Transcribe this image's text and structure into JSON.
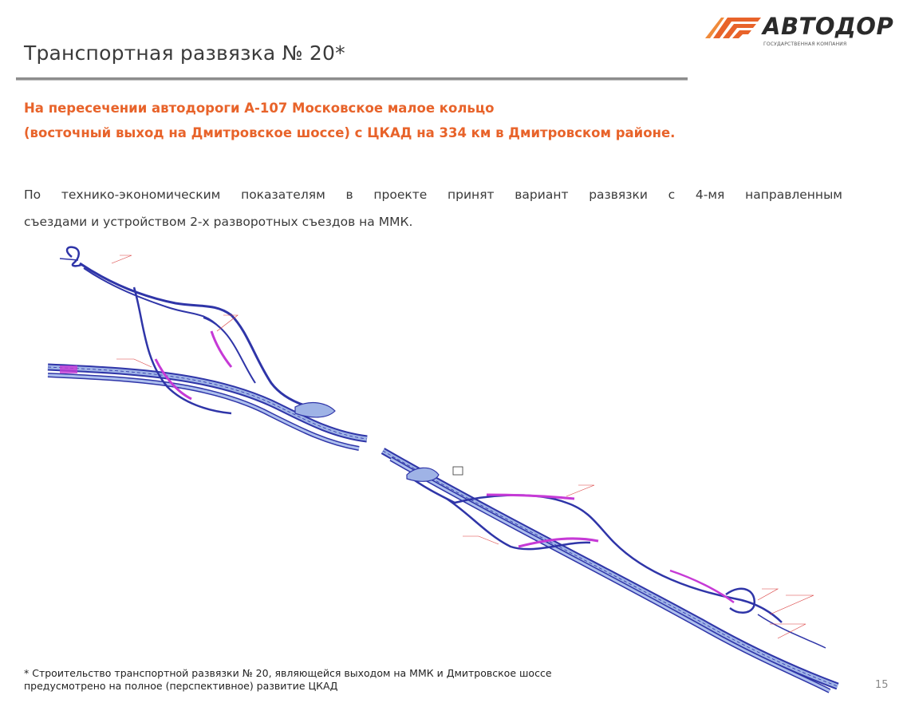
{
  "header": {
    "title": "Транспортная развязка № 20*",
    "logo": {
      "name": "АВТОДОР",
      "tagline": "ГОСУДАРСТВЕННАЯ КОМПАНИЯ",
      "icon": "stripes-logo-icon",
      "color": "#e8632a"
    }
  },
  "subtitle": {
    "line1": "На пересечении автодороги А-107 Московское малое кольцо",
    "line2": "(восточный выход на Дмитровское шоссе) с ЦКАД на 334 км в Дмитровском районе."
  },
  "body": {
    "line1": "По технико-экономическим показателям в проекте принят вариант развязки с 4-мя направленным",
    "line2": "съездами и устройством  2-х разворотных съездов на ММК."
  },
  "footnote": {
    "line1": "* Строительство транспортной развязки № 20, являющейся выходом на ММК и Дмитровское шоссе",
    "line2": "предусмотрено на полное (перспективное) развитие ЦКАД"
  },
  "page_number": "15",
  "colors": {
    "accent": "#e8632a",
    "road": "#3a3fb3",
    "ramp_highlight": "#c63ad6",
    "annotation": "#d93b3b"
  }
}
